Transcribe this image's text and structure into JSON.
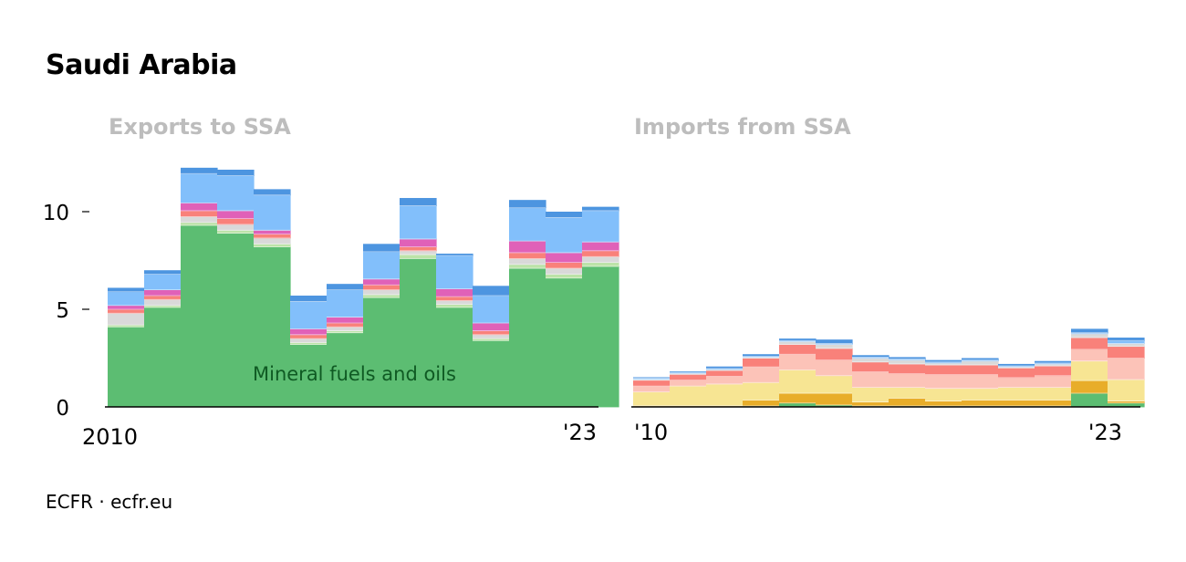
{
  "title": "Saudi Arabia",
  "source": "ECFR · ecfr.eu",
  "colors": {
    "mineral_fuels": "#5cbd72",
    "gold_dark": "#e8ad2a",
    "yellow": "#f7e593",
    "peach": "#fcc3b8",
    "salmon": "#f9817a",
    "light_grey": "#d9d9d9",
    "magenta": "#e061b8",
    "light_blue": "#82bffb",
    "blue_top": "#4d95e0",
    "light_green": "#bce3a8"
  },
  "chart_data": [
    {
      "type": "bar",
      "stacked": true,
      "title": "Exports to SSA",
      "x": [
        2010,
        2011,
        2012,
        2013,
        2014,
        2015,
        2016,
        2017,
        2018,
        2019,
        2020,
        2021,
        2022,
        2023
      ],
      "x_tick_labels": {
        "start": "2010",
        "end": "'23"
      },
      "ylim": [
        0,
        13
      ],
      "y_ticks": [
        0,
        5,
        10
      ],
      "grid": false,
      "annotation": "Mineral fuels and oils",
      "series": [
        {
          "name": "Mineral fuels and oils",
          "color": "mineral_fuels",
          "values": [
            4.1,
            5.1,
            9.3,
            8.9,
            8.2,
            3.2,
            3.8,
            5.6,
            7.6,
            5.1,
            3.4,
            7.1,
            6.6,
            7.2
          ]
        },
        {
          "color": "light_green",
          "values": [
            0.1,
            0.1,
            0.15,
            0.15,
            0.15,
            0.1,
            0.1,
            0.15,
            0.2,
            0.15,
            0.1,
            0.2,
            0.2,
            0.2
          ]
        },
        {
          "color": "light_grey",
          "values": [
            0.6,
            0.3,
            0.3,
            0.3,
            0.3,
            0.2,
            0.2,
            0.25,
            0.2,
            0.2,
            0.2,
            0.3,
            0.3,
            0.3
          ]
        },
        {
          "color": "salmon",
          "values": [
            0.2,
            0.2,
            0.3,
            0.3,
            0.2,
            0.2,
            0.2,
            0.25,
            0.2,
            0.2,
            0.2,
            0.3,
            0.3,
            0.3
          ]
        },
        {
          "color": "magenta",
          "values": [
            0.2,
            0.3,
            0.4,
            0.4,
            0.2,
            0.3,
            0.3,
            0.3,
            0.4,
            0.4,
            0.4,
            0.6,
            0.5,
            0.45
          ]
        },
        {
          "color": "light_blue",
          "values": [
            0.7,
            0.8,
            1.5,
            1.8,
            1.8,
            1.4,
            1.4,
            1.4,
            1.7,
            1.7,
            1.4,
            1.7,
            1.8,
            1.6
          ]
        },
        {
          "color": "blue_top",
          "values": [
            0.2,
            0.2,
            0.3,
            0.3,
            0.3,
            0.3,
            0.3,
            0.4,
            0.4,
            0.1,
            0.5,
            0.4,
            0.3,
            0.2
          ]
        }
      ]
    },
    {
      "type": "bar",
      "stacked": true,
      "title": "Imports from SSA",
      "x": [
        2010,
        2011,
        2012,
        2013,
        2014,
        2015,
        2016,
        2017,
        2018,
        2019,
        2020,
        2021,
        2022,
        2023
      ],
      "x_tick_labels": {
        "start": "'10",
        "end": "'23"
      },
      "ylim": [
        0,
        13
      ],
      "grid": false,
      "series": [
        {
          "color": "mineral_fuels",
          "values": [
            0.02,
            0.02,
            0.02,
            0.05,
            0.2,
            0.1,
            0.05,
            0.05,
            0.05,
            0.05,
            0.05,
            0.05,
            0.7,
            0.2
          ]
        },
        {
          "color": "gold_dark",
          "values": [
            0.05,
            0.05,
            0.05,
            0.3,
            0.5,
            0.6,
            0.2,
            0.4,
            0.25,
            0.3,
            0.3,
            0.3,
            0.65,
            0.1
          ]
        },
        {
          "color": "yellow",
          "values": [
            0.7,
            1.0,
            1.1,
            0.9,
            1.2,
            0.9,
            0.75,
            0.55,
            0.65,
            0.6,
            0.65,
            0.65,
            1.0,
            1.1
          ]
        },
        {
          "color": "peach",
          "values": [
            0.3,
            0.3,
            0.4,
            0.8,
            0.8,
            0.8,
            0.8,
            0.7,
            0.7,
            0.7,
            0.5,
            0.6,
            0.6,
            1.1
          ]
        },
        {
          "color": "salmon",
          "values": [
            0.3,
            0.3,
            0.3,
            0.45,
            0.5,
            0.6,
            0.5,
            0.5,
            0.5,
            0.5,
            0.5,
            0.5,
            0.6,
            0.6
          ]
        },
        {
          "color": "light_grey",
          "values": [
            0.05,
            0.05,
            0.05,
            0.05,
            0.15,
            0.2,
            0.2,
            0.2,
            0.1,
            0.2,
            0.05,
            0.1,
            0.2,
            0.15
          ]
        },
        {
          "color": "light_blue",
          "values": [
            0.05,
            0.05,
            0.05,
            0.05,
            0.05,
            0.05,
            0.05,
            0.05,
            0.05,
            0.05,
            0.05,
            0.05,
            0.05,
            0.15
          ]
        },
        {
          "color": "blue_top",
          "values": [
            0.05,
            0.05,
            0.1,
            0.1,
            0.1,
            0.2,
            0.1,
            0.1,
            0.1,
            0.1,
            0.1,
            0.1,
            0.2,
            0.15
          ]
        }
      ]
    }
  ]
}
